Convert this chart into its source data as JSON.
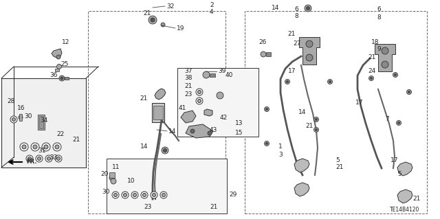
{
  "diagram_code": "TE14B4120",
  "background_color": "#ffffff",
  "figsize": [
    6.4,
    3.19
  ],
  "dpi": 100,
  "font_size": 6.5,
  "line_color": "#222222",
  "part_color": "#888888",
  "part_edge": "#333333"
}
